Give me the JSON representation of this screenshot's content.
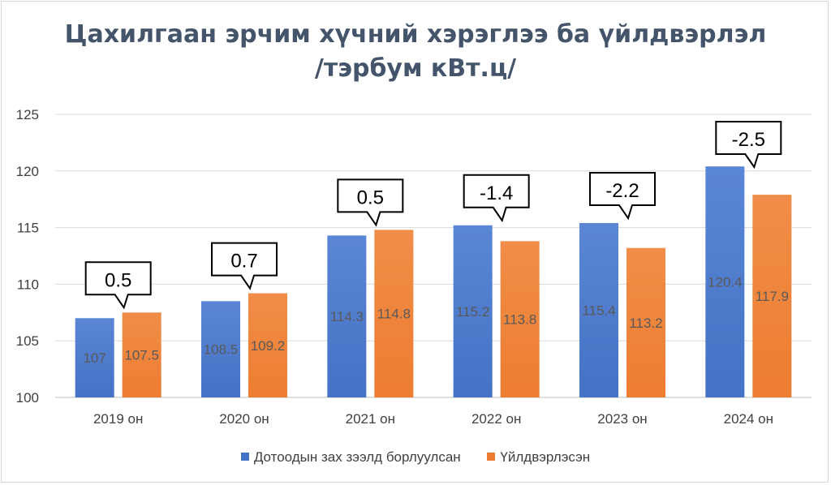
{
  "colors": {
    "series_a": "#4472c4",
    "series_b": "#ed7d31",
    "title": "#44546a",
    "axis_text": "#404040",
    "value_text": "#595959",
    "grid": "#d9d9d9"
  },
  "chart_data": {
    "type": "bar",
    "title_line1": "Цахилгаан эрчим хүчний хэрэглээ ба үйлдвэрлэл",
    "title_line2": "/тэрбум кВт.ц/",
    "xlabel": "",
    "ylabel": "",
    "ylim": [
      100,
      125
    ],
    "yticks": [
      100,
      105,
      110,
      115,
      120,
      125
    ],
    "grid": true,
    "legend_position": "bottom",
    "categories": [
      "2019 он",
      "2020 он",
      "2021 он",
      "2022 он",
      "2023 он",
      "2024 он"
    ],
    "series": [
      {
        "name": "Дотоодын зах зээлд борлуулсан",
        "values": [
          107,
          108.5,
          114.3,
          115.2,
          115.4,
          120.4
        ]
      },
      {
        "name": "Үйлдвэрлэсэн",
        "values": [
          107.5,
          109.2,
          114.8,
          113.8,
          113.2,
          117.9
        ]
      }
    ],
    "value_labels": [
      [
        "107",
        "108.5",
        "114.3",
        "115.2",
        "115.4",
        "120.4"
      ],
      [
        "107.5",
        "109.2",
        "114.8",
        "113.8",
        "113.2",
        "117.9"
      ]
    ],
    "callouts": [
      "0.5",
      "0.7",
      "0.5",
      "-1.4",
      "-2.2",
      "-2.5"
    ]
  }
}
